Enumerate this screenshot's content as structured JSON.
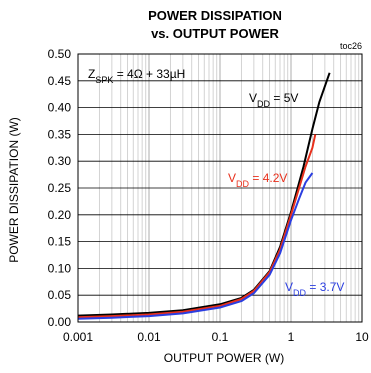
{
  "chart_data": {
    "type": "line",
    "title_line1": "POWER DISSIPATION",
    "title_line2": "vs. OUTPUT POWER",
    "figure_id": "toc26",
    "xlabel": "OUTPUT POWER (W)",
    "ylabel": "POWER DISSIPATION (W)",
    "xscale": "log",
    "xlim": [
      0.001,
      10
    ],
    "ylim": [
      0,
      0.5
    ],
    "grid": true,
    "x_ticks": [
      "0.001",
      "0.01",
      "0.1",
      "1",
      "10"
    ],
    "y_ticks": [
      "0.00",
      "0.05",
      "0.10",
      "0.15",
      "0.20",
      "0.25",
      "0.30",
      "0.35",
      "0.40",
      "0.45",
      "0.50"
    ],
    "condition": {
      "prefix": "Z",
      "sub": "SPK",
      "suffix": " = 4Ω + 33µH"
    },
    "series": [
      {
        "name": "VDD = 5V",
        "label_main": "V",
        "label_sub": "DD",
        "label_suffix": " = 5V",
        "color": "#000000",
        "x": [
          0.001,
          0.003,
          0.01,
          0.03,
          0.1,
          0.2,
          0.3,
          0.5,
          0.7,
          1.0,
          1.5,
          2.0,
          2.5,
          3.0,
          3.5
        ],
        "y": [
          0.012,
          0.014,
          0.017,
          0.022,
          0.033,
          0.045,
          0.06,
          0.095,
          0.14,
          0.205,
          0.29,
          0.36,
          0.41,
          0.44,
          0.465
        ]
      },
      {
        "name": "VDD = 4.2V",
        "label_main": "V",
        "label_sub": "DD",
        "label_suffix": " = 4.2V",
        "color": "#e8301c",
        "x": [
          0.001,
          0.003,
          0.01,
          0.03,
          0.1,
          0.2,
          0.3,
          0.5,
          0.7,
          1.0,
          1.3,
          1.6,
          2.0,
          2.2
        ],
        "y": [
          0.009,
          0.011,
          0.014,
          0.019,
          0.03,
          0.043,
          0.058,
          0.093,
          0.135,
          0.2,
          0.25,
          0.29,
          0.325,
          0.35
        ]
      },
      {
        "name": "VDD = 3.7V",
        "label_main": "V",
        "label_sub": "DD",
        "label_suffix": " = 3.7V",
        "color": "#2b3ee0",
        "x": [
          0.001,
          0.003,
          0.01,
          0.03,
          0.1,
          0.2,
          0.3,
          0.5,
          0.7,
          1.0,
          1.3,
          1.6,
          2.0
        ],
        "y": [
          0.006,
          0.008,
          0.011,
          0.016,
          0.027,
          0.039,
          0.054,
          0.088,
          0.128,
          0.19,
          0.23,
          0.26,
          0.278
        ]
      }
    ]
  }
}
